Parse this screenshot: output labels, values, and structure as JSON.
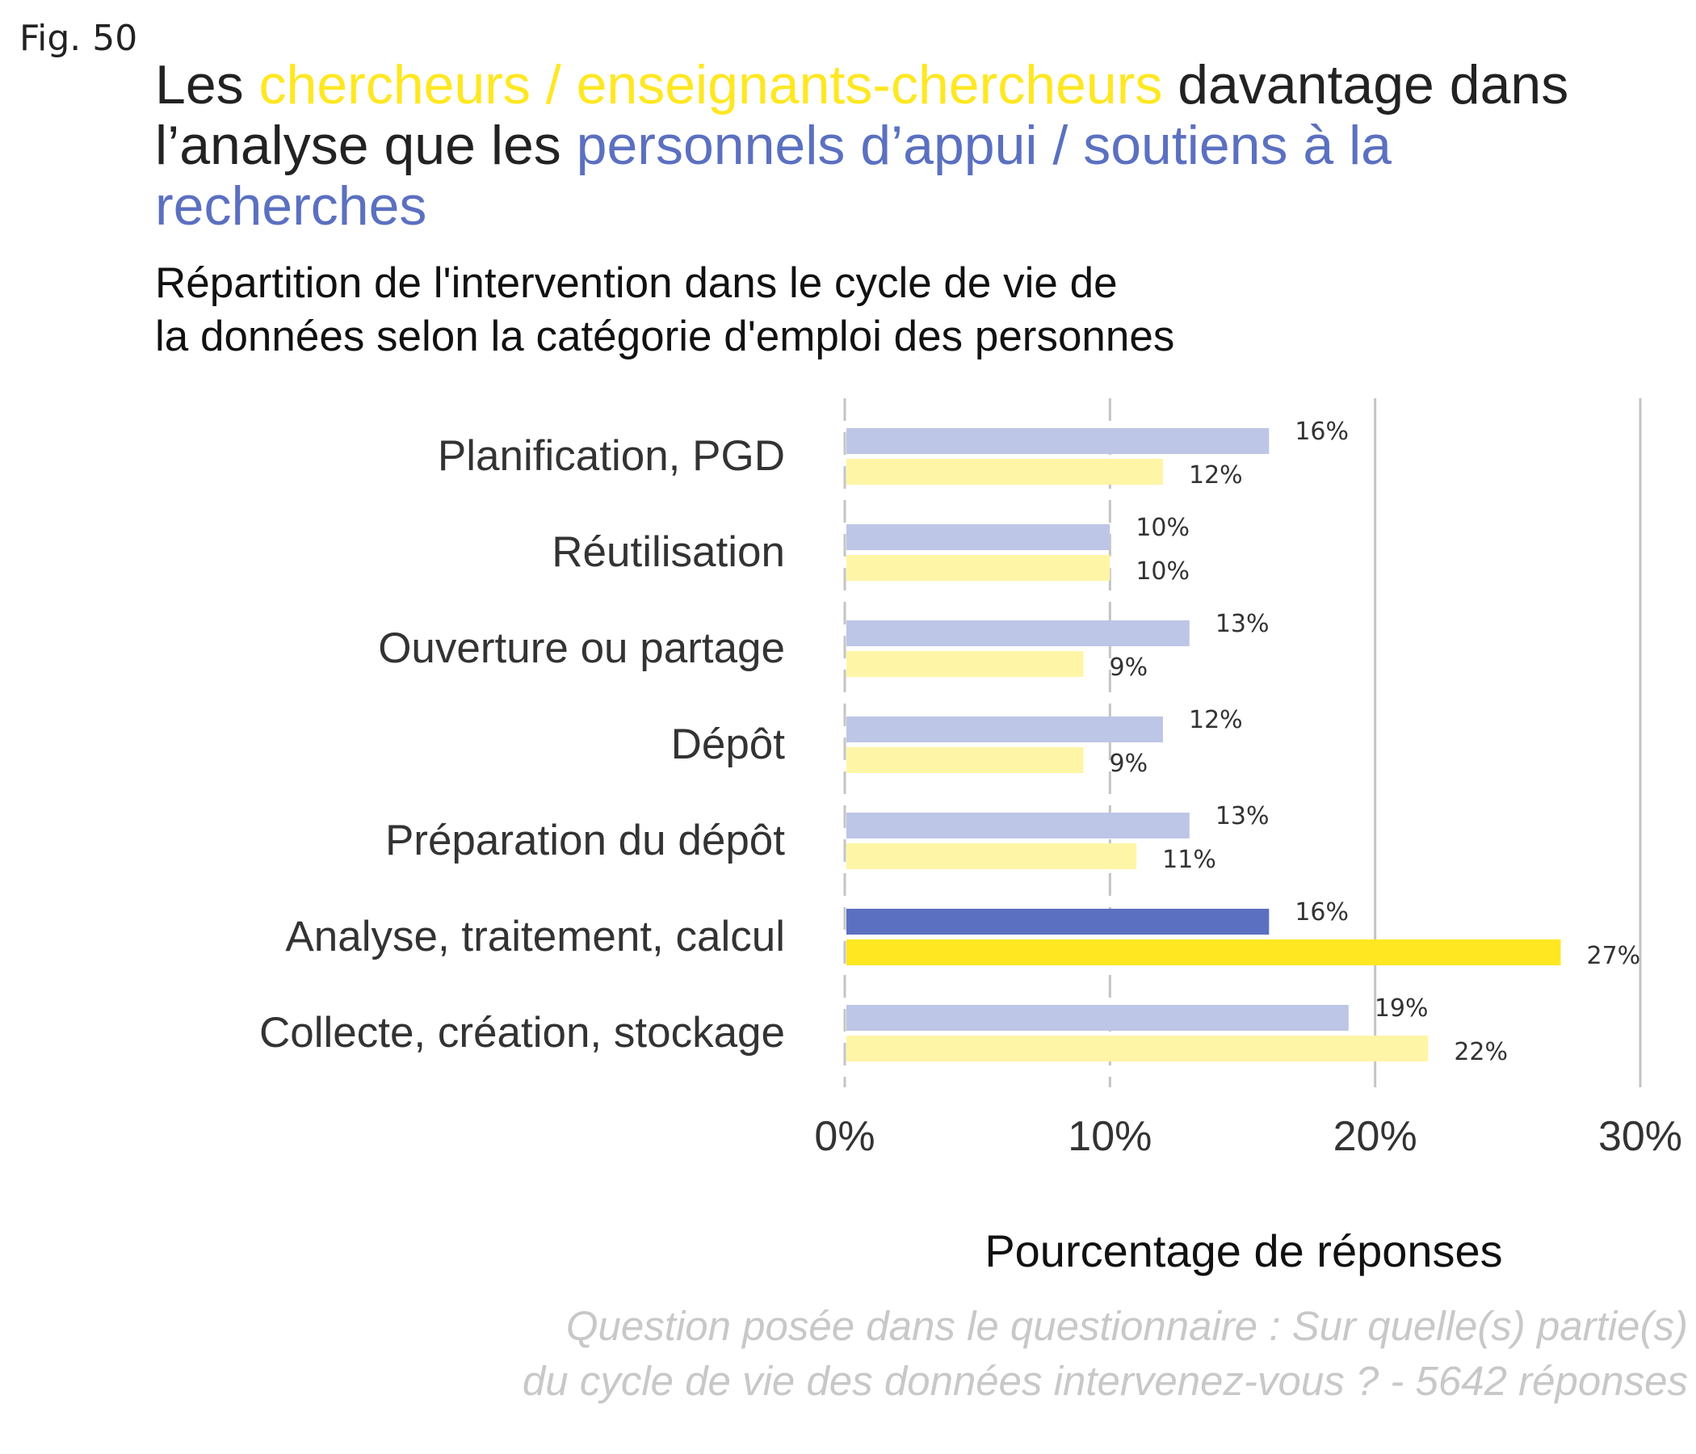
{
  "fig_label": "Fig. 50",
  "title": {
    "part1": "Les ",
    "part2": "chercheurs / enseignants-chercheurs",
    "part3": " davantage dans l’analyse que les ",
    "part4": "personnels d’appui / soutiens à la recherches"
  },
  "subtitle": {
    "line1": "Répartition de l'intervention dans le cycle de vie de",
    "line2": "la données selon la catégorie d'emploi des personnes"
  },
  "caption": {
    "line1": "Question posée dans le questionnaire : Sur quelle(s) partie(s)",
    "line2": "du cycle de vie des données intervenez-vous ? - 5642 réponses"
  },
  "colors": {
    "appui": "#5B70C0",
    "chercheurs": "#FFE722",
    "appui_light": "#BDC6E6",
    "chercheurs_light": "#FFF5A6"
  },
  "chart_data": {
    "type": "bar",
    "orientation": "horizontal",
    "categories": [
      "Planification, PGD",
      "Réutilisation",
      "Ouverture ou partage",
      "Dépôt",
      "Préparation du dépôt",
      "Analyse, traitement, calcul",
      "Collecte, création, stockage"
    ],
    "series": [
      {
        "color": "#5B70C0",
        "values": [
          16,
          10,
          13,
          12,
          13,
          16,
          19
        ],
        "labels": [
          "16%",
          "10%",
          "13%",
          "12%",
          "13%",
          "16%",
          "19%"
        ]
      },
      {
        "color": "#FFE722",
        "values": [
          12,
          10,
          9,
          9,
          11,
          27,
          22
        ],
        "labels": [
          "12%",
          "10%",
          "9%",
          "9%",
          "11%",
          "27%",
          "22%"
        ]
      }
    ],
    "highlight_category": "Analyse, traitement, calcul",
    "xlabel": "Pourcentage de réponses",
    "xlim": [
      0,
      30
    ],
    "xticks": [
      0,
      10,
      20,
      30
    ],
    "xtick_labels": [
      "0%",
      "10%",
      "20%",
      "30%"
    ],
    "grid": true
  }
}
